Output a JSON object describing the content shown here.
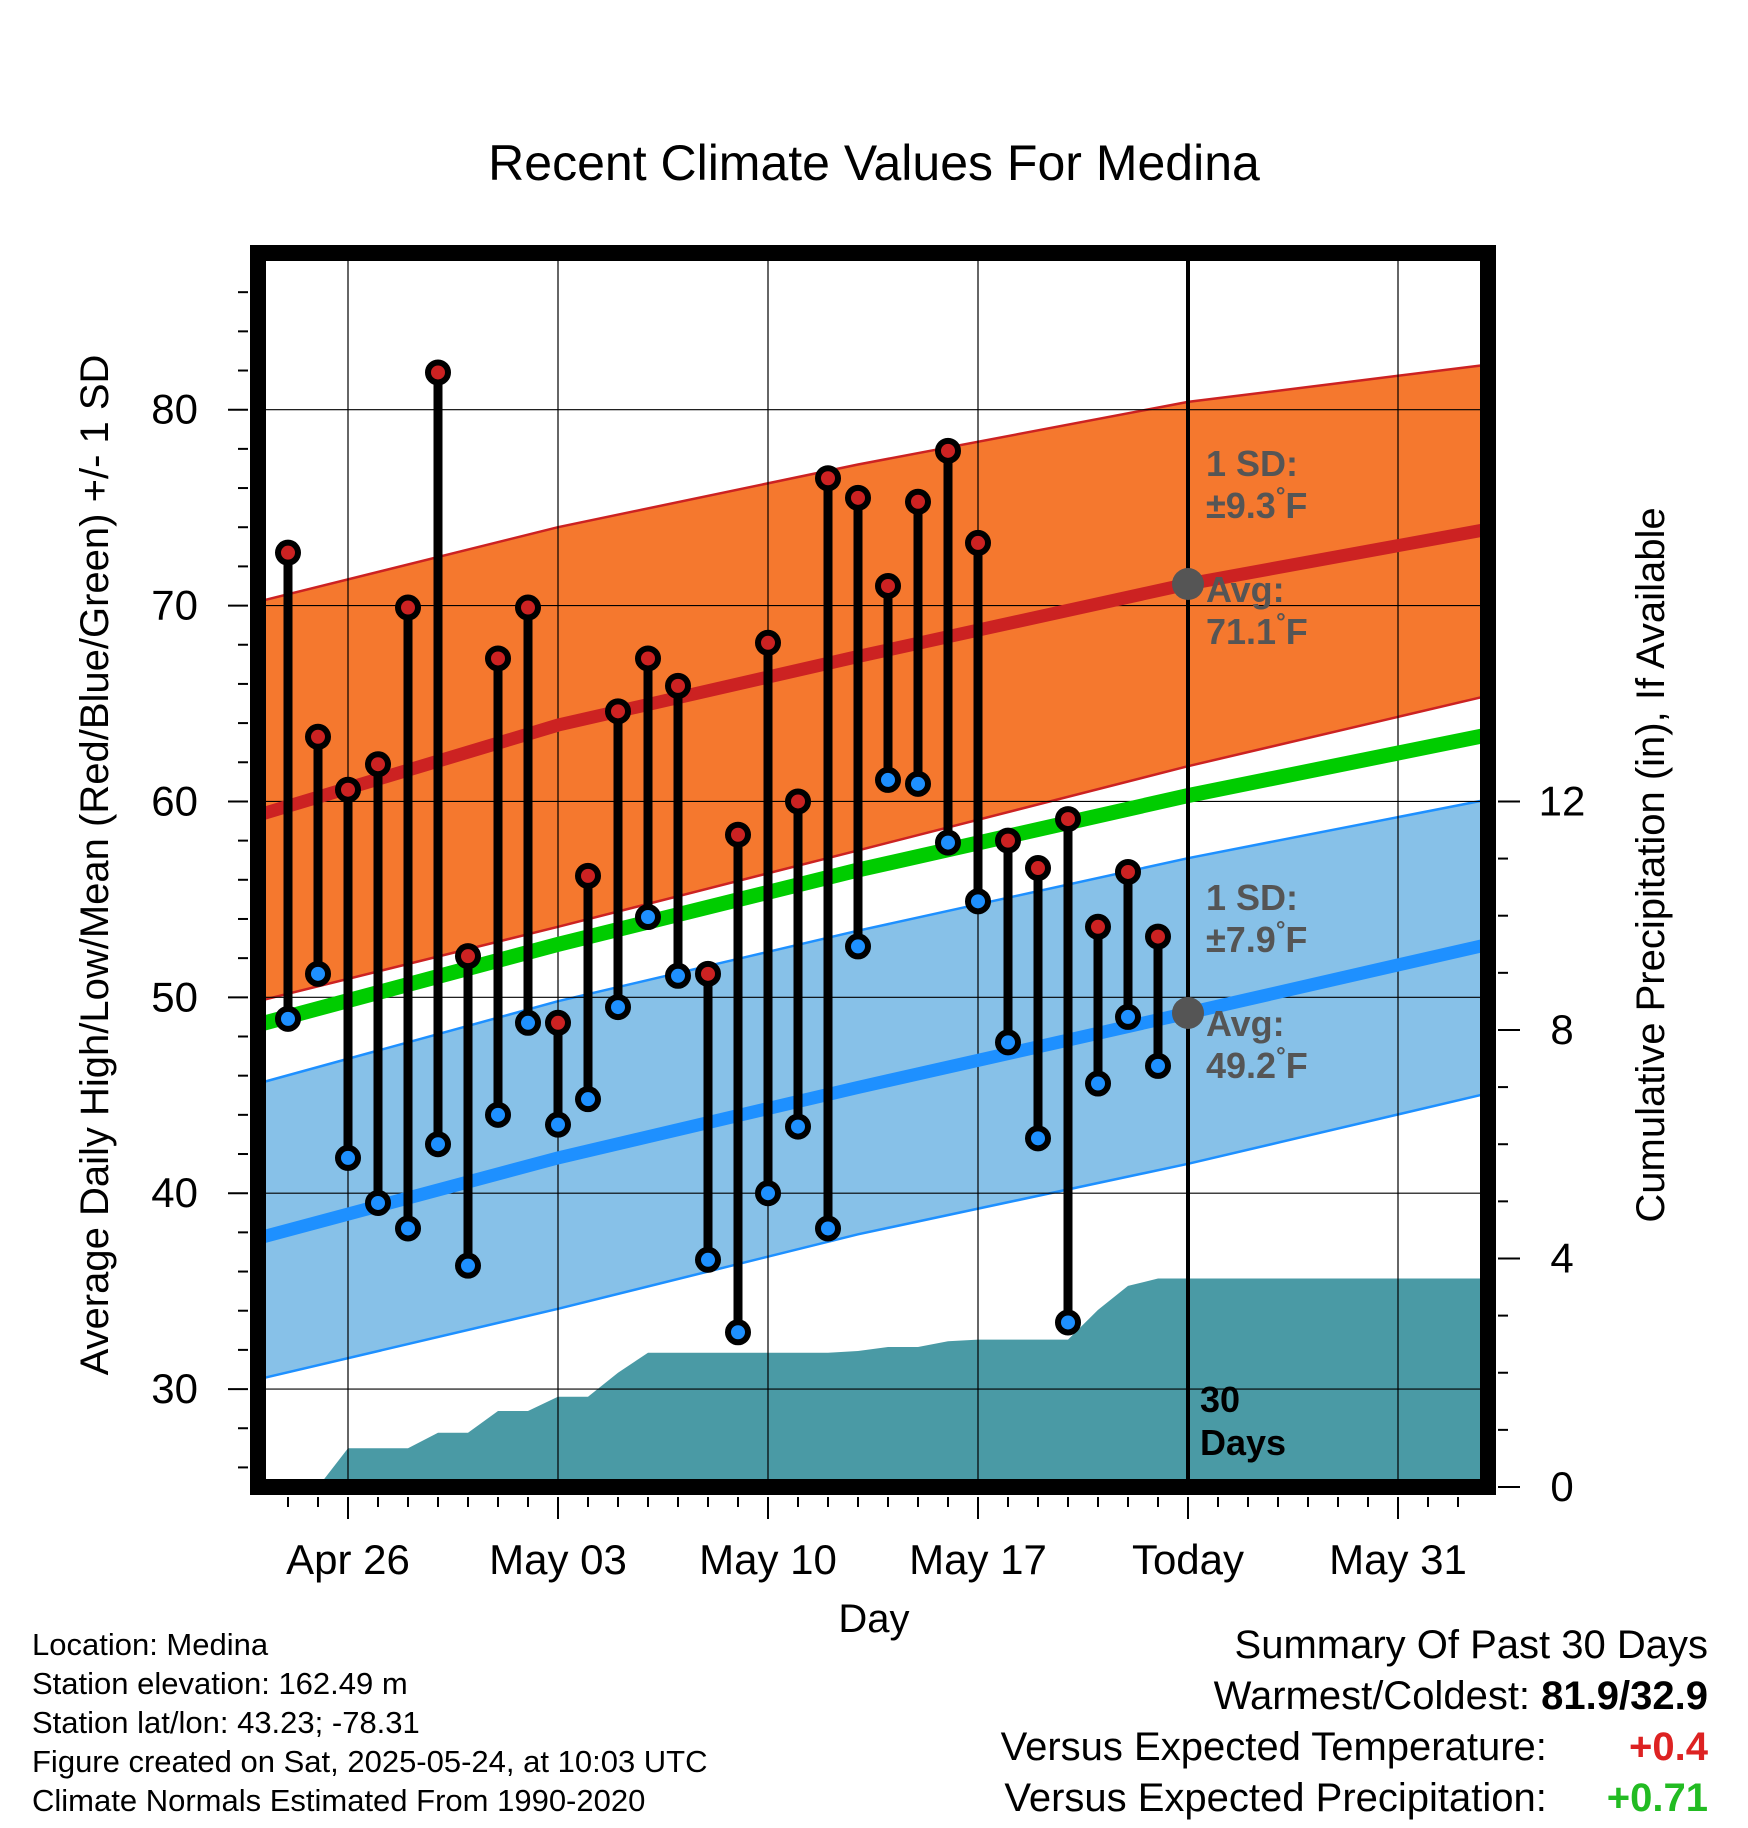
{
  "chart_data": {
    "type": "line",
    "title": "Recent Climate Values For Medina",
    "xlabel": "Day",
    "ylabel": "Average Daily High/Low/Mean (Red/Blue/Green) +/- 1 SD",
    "y2label": "Cumulative Precipitation (in), If Available",
    "x_tick_labels": [
      "Apr 26",
      "May 03",
      "May 10",
      "May 17",
      "Today",
      "May 31"
    ],
    "x_tick_dates": [
      "2025-04-26",
      "2025-05-03",
      "2025-05-10",
      "2025-05-17",
      "2025-05-24",
      "2025-05-31"
    ],
    "x_range": [
      "2025-04-23",
      "2025-06-03"
    ],
    "ylim": [
      25,
      88
    ],
    "y_ticks": [
      30,
      40,
      50,
      60,
      70,
      80
    ],
    "y2lim": [
      0,
      12
    ],
    "y2_ticks": [
      0,
      4,
      8,
      12
    ],
    "grid": true,
    "today": "2025-05-24",
    "today_label": [
      "30",
      "Days"
    ],
    "series": [
      {
        "name": "Daily High",
        "color": "#cc2222",
        "x": [
          "2025-04-24",
          "2025-04-25",
          "2025-04-26",
          "2025-04-27",
          "2025-04-28",
          "2025-04-29",
          "2025-04-30",
          "2025-05-01",
          "2025-05-02",
          "2025-05-03",
          "2025-05-04",
          "2025-05-05",
          "2025-05-06",
          "2025-05-07",
          "2025-05-08",
          "2025-05-09",
          "2025-05-10",
          "2025-05-11",
          "2025-05-12",
          "2025-05-13",
          "2025-05-14",
          "2025-05-15",
          "2025-05-16",
          "2025-05-17",
          "2025-05-18",
          "2025-05-19",
          "2025-05-20",
          "2025-05-21",
          "2025-05-22",
          "2025-05-23"
        ],
        "values": [
          72.7,
          63.3,
          60.6,
          61.9,
          69.9,
          81.9,
          52.1,
          67.3,
          69.9,
          48.7,
          56.2,
          64.6,
          67.3,
          65.9,
          51.2,
          58.3,
          68.1,
          60.0,
          76.5,
          75.5,
          71.0,
          75.3,
          77.9,
          73.2,
          58.0,
          56.6,
          59.1,
          53.6,
          56.4,
          53.1
        ]
      },
      {
        "name": "Daily Low",
        "color": "#1e90ff",
        "x": [
          "2025-04-24",
          "2025-04-25",
          "2025-04-26",
          "2025-04-27",
          "2025-04-28",
          "2025-04-29",
          "2025-04-30",
          "2025-05-01",
          "2025-05-02",
          "2025-05-03",
          "2025-05-04",
          "2025-05-05",
          "2025-05-06",
          "2025-05-07",
          "2025-05-08",
          "2025-05-09",
          "2025-05-10",
          "2025-05-11",
          "2025-05-12",
          "2025-05-13",
          "2025-05-14",
          "2025-05-15",
          "2025-05-16",
          "2025-05-17",
          "2025-05-18",
          "2025-05-19",
          "2025-05-20",
          "2025-05-21",
          "2025-05-22",
          "2025-05-23"
        ],
        "values": [
          48.9,
          51.2,
          41.8,
          39.5,
          38.2,
          42.5,
          36.3,
          44.0,
          48.7,
          43.5,
          44.8,
          49.5,
          54.1,
          51.1,
          36.6,
          32.9,
          40.0,
          43.4,
          38.2,
          52.6,
          61.1,
          60.9,
          57.9,
          54.9,
          47.7,
          42.8,
          33.4,
          45.6,
          49.0,
          46.5
        ]
      },
      {
        "name": "Normal High",
        "color": "#cc2222",
        "x": [
          "2025-04-23",
          "2025-05-03",
          "2025-05-13",
          "2025-05-24",
          "2025-06-03"
        ],
        "values": [
          59.3,
          63.9,
          67.4,
          71.1,
          73.9
        ]
      },
      {
        "name": "Normal High +1 SD",
        "color": "#cc2222",
        "x": [
          "2025-04-23",
          "2025-05-03",
          "2025-05-13",
          "2025-05-24",
          "2025-06-03"
        ],
        "values": [
          70.2,
          74.0,
          77.2,
          80.4,
          82.3
        ]
      },
      {
        "name": "Normal High -1 SD",
        "color": "#cc2222",
        "x": [
          "2025-04-23",
          "2025-05-03",
          "2025-05-13",
          "2025-05-24",
          "2025-06-03"
        ],
        "values": [
          49.8,
          53.6,
          57.5,
          61.8,
          65.4
        ]
      },
      {
        "name": "Normal Mean",
        "color": "#00cc00",
        "x": [
          "2025-04-23",
          "2025-05-03",
          "2025-05-13",
          "2025-05-24",
          "2025-06-03"
        ],
        "values": [
          48.6,
          52.7,
          56.5,
          60.3,
          63.4
        ]
      },
      {
        "name": "Normal Low",
        "color": "#1e90ff",
        "x": [
          "2025-04-23",
          "2025-05-03",
          "2025-05-13",
          "2025-05-24",
          "2025-06-03"
        ],
        "values": [
          37.7,
          41.8,
          45.4,
          49.2,
          52.7
        ]
      },
      {
        "name": "Normal Low +1 SD",
        "color": "#1e90ff",
        "x": [
          "2025-04-23",
          "2025-05-03",
          "2025-05-13",
          "2025-05-24",
          "2025-06-03"
        ],
        "values": [
          45.6,
          49.8,
          53.4,
          57.1,
          60.1
        ]
      },
      {
        "name": "Normal Low -1 SD",
        "color": "#1e90ff",
        "x": [
          "2025-04-23",
          "2025-05-03",
          "2025-05-13",
          "2025-05-24",
          "2025-06-03"
        ],
        "values": [
          30.5,
          34.1,
          37.9,
          41.5,
          45.1
        ]
      },
      {
        "name": "Cumulative Precipitation",
        "color": "#4a9aa5",
        "x": [
          "2025-04-25",
          "2025-04-26",
          "2025-04-27",
          "2025-04-28",
          "2025-04-29",
          "2025-04-30",
          "2025-05-01",
          "2025-05-02",
          "2025-05-03",
          "2025-05-04",
          "2025-05-05",
          "2025-05-06",
          "2025-05-07",
          "2025-05-08",
          "2025-05-09",
          "2025-05-10",
          "2025-05-11",
          "2025-05-12",
          "2025-05-13",
          "2025-05-14",
          "2025-05-15",
          "2025-05-16",
          "2025-05-17",
          "2025-05-18",
          "2025-05-19",
          "2025-05-20",
          "2025-05-21",
          "2025-05-22",
          "2025-05-23",
          "2025-05-24",
          "2025-06-03"
        ],
        "values": [
          0.0,
          0.68,
          0.68,
          0.68,
          0.95,
          0.95,
          1.33,
          1.33,
          1.58,
          1.58,
          2.0,
          2.35,
          2.35,
          2.35,
          2.35,
          2.35,
          2.35,
          2.35,
          2.38,
          2.45,
          2.45,
          2.55,
          2.58,
          2.58,
          2.58,
          2.58,
          3.1,
          3.52,
          3.65,
          3.65,
          3.65
        ]
      }
    ],
    "annotations": {
      "high": {
        "sd_label": "1 SD:",
        "sd_value": "±9.3",
        "avg_label": "Avg:",
        "avg_value": "71.1",
        "unit": "°F",
        "avg": 71.1
      },
      "low": {
        "sd_label": "1 SD:",
        "sd_value": "±7.9",
        "avg_label": "Avg:",
        "avg_value": "49.2",
        "unit": "°F",
        "avg": 49.2
      }
    },
    "colors": {
      "high_band": "#f5782e",
      "low_band": "#87c1e8",
      "high_line": "#cc2222",
      "low_line": "#1e90ff",
      "mean_line": "#00cc00",
      "precip": "#4a9aa5",
      "annotation_text": "#555555",
      "marker_high": "#cc2222",
      "marker_low": "#1e90ff"
    }
  },
  "footer": [
    "Location: Medina",
    "Station elevation: 162.49 m",
    "Station lat/lon: 43.23; -78.31",
    "Figure created on Sat, 2025-05-24, at 10:03 UTC",
    "Climate Normals Estimated From 1990-2020"
  ],
  "summary": {
    "title": "Summary Of Past 30 Days",
    "warmest_label": "Warmest/Coldest:",
    "warmest_value": "81.9/32.9",
    "temp_label": "Versus Expected Temperature:",
    "temp_value": "+0.4",
    "temp_color": "#dd2222",
    "precip_label": "Versus Expected Precipitation:",
    "precip_value": "+0.71",
    "precip_color": "#22bb22"
  }
}
